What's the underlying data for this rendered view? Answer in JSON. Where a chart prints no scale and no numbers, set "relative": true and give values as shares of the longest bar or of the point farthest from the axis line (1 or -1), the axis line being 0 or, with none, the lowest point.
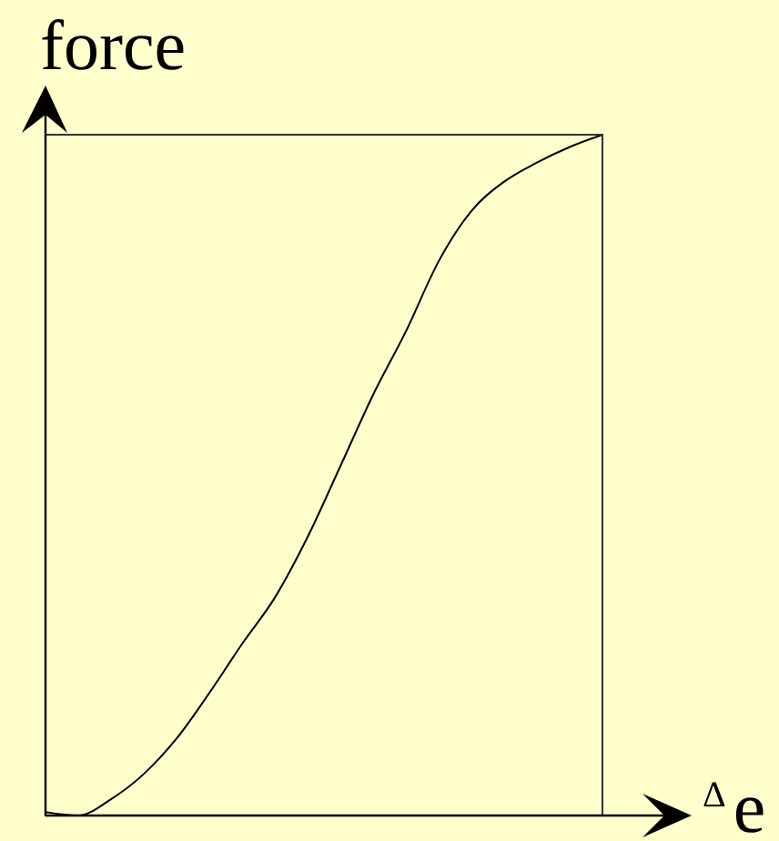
{
  "chart_data": {
    "type": "line",
    "xlabel": "$^{Δ}$e",
    "ylabel": "force",
    "relative": true,
    "categories": [
      null,
      null,
      null,
      null,
      null,
      null,
      null,
      null,
      null,
      null,
      null,
      null,
      null,
      null,
      null,
      null,
      null,
      null
    ],
    "color": "#000000",
    "values": [
      0.005,
      0,
      0.024,
      0.061,
      0.113,
      0.18,
      0.252,
      0.32,
      0.409,
      0.513,
      0.618,
      0.711,
      0.814,
      0.888,
      0.931,
      0.959,
      0.982,
      1
    ]
  }
}
